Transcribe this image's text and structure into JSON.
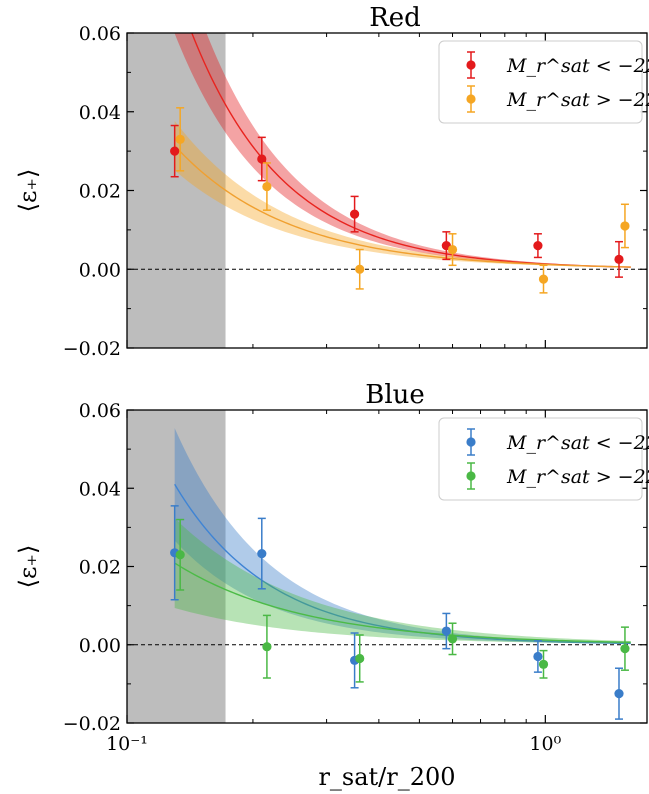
{
  "chart_data": [
    {
      "type": "scatter",
      "title": "Red",
      "xlabel": "",
      "ylabel": "⟨ε₊⟩",
      "xscale": "log",
      "xlim": [
        0.1,
        1.75
      ],
      "ylim": [
        -0.02,
        0.06
      ],
      "yticks": [
        -0.02,
        0.0,
        0.02,
        0.04,
        0.06
      ],
      "ytick_labels": [
        "−0.02",
        "0.00",
        "0.02",
        "0.04",
        "0.06"
      ],
      "excluded_region_x": [
        0.1,
        0.172
      ],
      "zero_line": true,
      "legend_position": "top-right",
      "series": [
        {
          "name": "M_r^sat < −22",
          "color": "#e31a1c",
          "x": [
            0.13,
            0.21,
            0.35,
            0.58,
            0.96,
            1.5
          ],
          "y": [
            0.03,
            0.028,
            0.014,
            0.006,
            0.006,
            0.0025
          ],
          "yerr": [
            0.0065,
            0.0055,
            0.0045,
            0.0035,
            0.003,
            0.0045
          ],
          "fit": {
            "amplitude": 0.00135,
            "exponent": -1.95,
            "band_fraction": 0.17
          }
        },
        {
          "name": "M_r^sat > −22",
          "color": "#f5a623",
          "x": [
            0.134,
            0.216,
            0.36,
            0.6,
            0.99,
            1.55
          ],
          "y": [
            0.033,
            0.021,
            0.0,
            0.005,
            -0.0025,
            0.011
          ],
          "yerr": [
            0.008,
            0.006,
            0.005,
            0.004,
            0.0035,
            0.0055
          ],
          "fit": {
            "amplitude": 0.0012,
            "exponent": -1.6,
            "band_fraction": 0.2
          }
        }
      ]
    },
    {
      "type": "scatter",
      "title": "Blue",
      "xlabel": "r_sat/r_200",
      "ylabel": "⟨ε₊⟩",
      "xscale": "log",
      "xlim": [
        0.1,
        1.75
      ],
      "ylim": [
        -0.02,
        0.06
      ],
      "yticks": [
        -0.02,
        0.0,
        0.02,
        0.04,
        0.06
      ],
      "ytick_labels": [
        "−0.02",
        "0.00",
        "0.02",
        "0.04",
        "0.06"
      ],
      "xtick_labels": [
        "10⁻¹",
        "10⁰"
      ],
      "excluded_region_x": [
        0.1,
        0.172
      ],
      "zero_line": true,
      "legend_position": "top-right",
      "series": [
        {
          "name": "M_r^sat < −22",
          "color": "#3a7dc9",
          "x": [
            0.13,
            0.21,
            0.35,
            0.58,
            0.96,
            1.5
          ],
          "y": [
            0.0235,
            0.0233,
            -0.004,
            0.0035,
            -0.003,
            -0.0125
          ],
          "yerr": [
            0.012,
            0.009,
            0.007,
            0.0045,
            0.004,
            0.0065
          ],
          "fit": {
            "amplitude": 0.00085,
            "exponent": -1.9,
            "band_fraction": 0.35
          }
        },
        {
          "name": "M_r^sat > −22",
          "color": "#4ab845",
          "x": [
            0.134,
            0.216,
            0.36,
            0.6,
            0.99,
            1.55
          ],
          "y": [
            0.023,
            -0.0005,
            -0.0035,
            0.0015,
            -0.005,
            -0.001
          ],
          "yerr": [
            0.009,
            0.008,
            0.006,
            0.004,
            0.0035,
            0.0055
          ],
          "fit": {
            "amplitude": 0.0012,
            "exponent": -1.4,
            "band_fraction": 0.55
          }
        }
      ]
    }
  ]
}
